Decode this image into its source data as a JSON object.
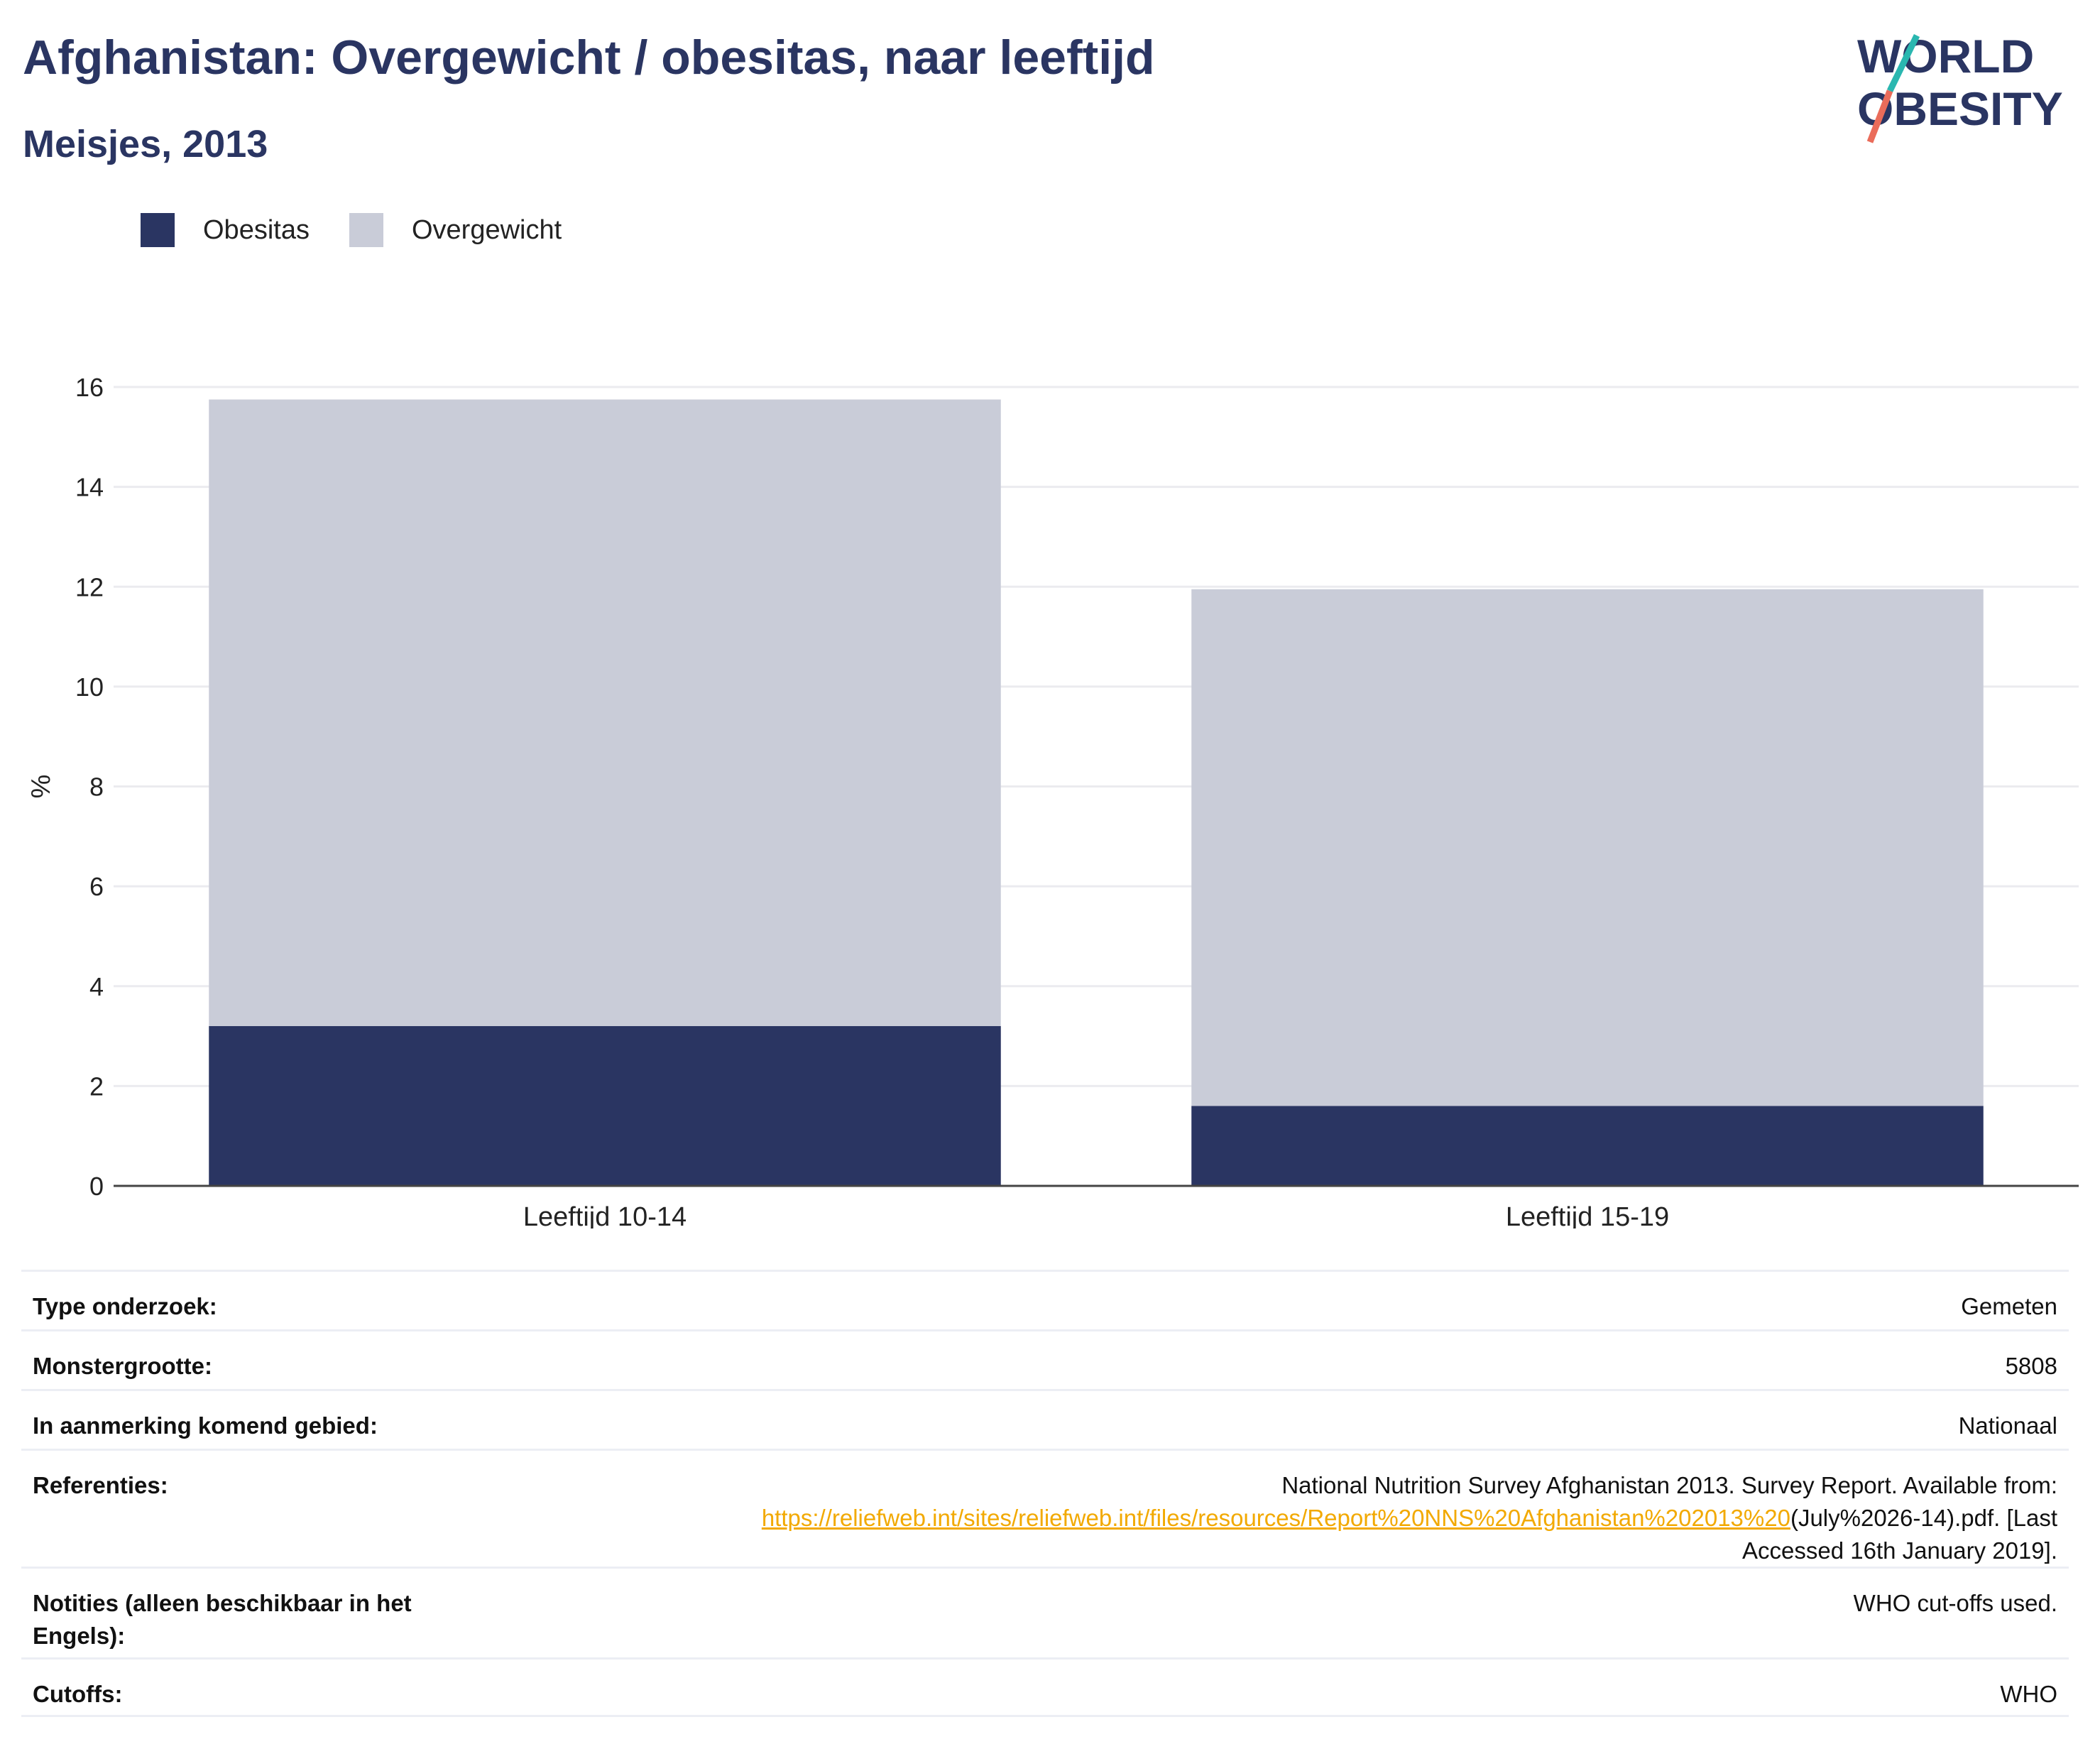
{
  "title": "Afghanistan: Overgewicht / obesitas, naar leeftijd",
  "subtitle": "Meisjes, 2013",
  "logo": {
    "line1": "WORLD",
    "line2": "OBESITY"
  },
  "colors": {
    "obesitas": "#2a3562",
    "overgewicht": "#c9ccd8",
    "link": "#f2a900",
    "title": "#2a3562"
  },
  "chart_data": {
    "type": "bar",
    "stacked": true,
    "categories": [
      "Leeftijd 10-14",
      "Leeftijd 15-19"
    ],
    "series": [
      {
        "name": "Obesitas",
        "values": [
          3.2,
          1.6
        ]
      },
      {
        "name": "Overgewicht",
        "values": [
          12.55,
          10.35
        ]
      }
    ],
    "ylabel": "%",
    "xlabel": "",
    "ylim": [
      0,
      16
    ],
    "yticks": [
      0,
      2,
      4,
      6,
      8,
      10,
      12,
      14,
      16
    ],
    "grid": true,
    "legend_position": "top-left"
  },
  "info": {
    "rows": [
      {
        "label": "Type onderzoek:",
        "value": "Gemeten"
      },
      {
        "label": "Monstergrootte:",
        "value": "5808"
      },
      {
        "label": "In aanmerking komend gebied:",
        "value": "Nationaal"
      }
    ],
    "references": {
      "label": "Referenties:",
      "text_before": "National Nutrition Survey Afghanistan 2013. Survey Report. Available from:",
      "link": "https://reliefweb.int/sites/reliefweb.int/files/resources/Report%20NNS%20Afghanistan%202013%20",
      "text_after_link": "(July%2026-14).pdf. [Last",
      "text_end": "Accessed 16th January 2019]."
    },
    "notes": {
      "label": "Notities (alleen beschikbaar in het Engels):",
      "value": "WHO cut-offs used."
    },
    "cutoffs": {
      "label": "Cutoffs:",
      "value": "WHO"
    }
  }
}
